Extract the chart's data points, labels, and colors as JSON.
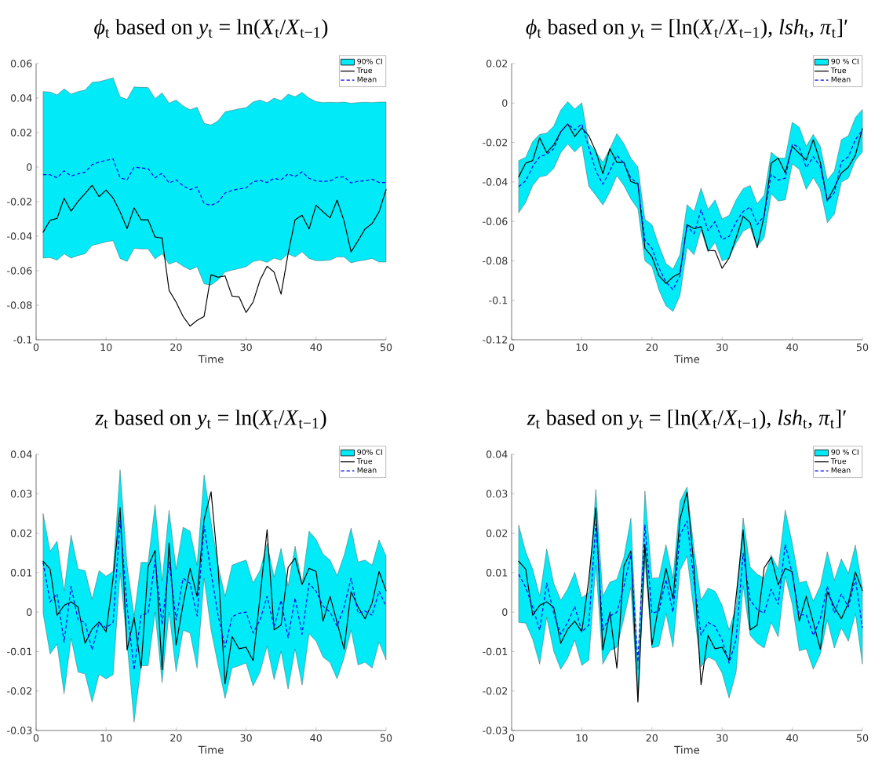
{
  "chart_data": [
    {
      "type": "line",
      "title": "*ϕ*$_{t}$ based on *y*$_{t}$ = ln(*X*$_{t}$/*X*$_{t−1}$)",
      "xlabel": "Time",
      "legend": "top right",
      "x": [
        1,
        2,
        3,
        4,
        5,
        6,
        7,
        8,
        9,
        10,
        11,
        12,
        13,
        14,
        15,
        16,
        17,
        18,
        19,
        20,
        21,
        22,
        23,
        24,
        25,
        26,
        27,
        28,
        29,
        30,
        31,
        32,
        33,
        34,
        35,
        36,
        37,
        38,
        39,
        40,
        41,
        42,
        43,
        44,
        45,
        46,
        47,
        48,
        49,
        50
      ],
      "xlim": [
        0,
        50
      ],
      "xticks": [
        0,
        10,
        20,
        30,
        40,
        50
      ],
      "ylim": [
        -0.1,
        0.06
      ],
      "yticks": [
        -0.1,
        -0.08,
        -0.06,
        -0.04,
        -0.02,
        0,
        0.02,
        0.04,
        0.06
      ],
      "series": [
        {
          "name": "90% CI",
          "type": "area",
          "color": "#00ebf7",
          "values": [
            null,
            null,
            null,
            null,
            null,
            null,
            null,
            null,
            null,
            null,
            null,
            null,
            null,
            null,
            null,
            null,
            null,
            null,
            null,
            null,
            null,
            null,
            null,
            null,
            null,
            null,
            null,
            null,
            null,
            null,
            null,
            null,
            null,
            null,
            null,
            null,
            null,
            null,
            null,
            null,
            null,
            null,
            null,
            null,
            null,
            null,
            null,
            null,
            null,
            null
          ],
          "upper": [
            0.0438,
            0.0435,
            0.0418,
            0.0453,
            0.0423,
            0.0438,
            0.0447,
            0.0491,
            0.0495,
            0.0506,
            0.0517,
            0.0408,
            0.0392,
            0.0465,
            0.0462,
            0.0461,
            0.0397,
            0.043,
            0.037,
            0.0389,
            0.0355,
            0.0332,
            0.0347,
            0.0253,
            0.0244,
            0.0268,
            0.032,
            0.0329,
            0.0338,
            0.0344,
            0.0377,
            0.0389,
            0.0373,
            0.04,
            0.0385,
            0.0423,
            0.0408,
            0.0433,
            0.04,
            0.038,
            0.0374,
            0.0376,
            0.0374,
            0.0377,
            0.037,
            0.0374,
            0.0376,
            0.0374,
            0.0377,
            0.0377
          ],
          "lower": [
            -0.0527,
            -0.0524,
            -0.0539,
            -0.0502,
            -0.0527,
            -0.0512,
            -0.0502,
            -0.0453,
            -0.0444,
            -0.0433,
            -0.0426,
            -0.0529,
            -0.0547,
            -0.0471,
            -0.0474,
            -0.0474,
            -0.0532,
            -0.0502,
            -0.0562,
            -0.0547,
            -0.0574,
            -0.0595,
            -0.0577,
            -0.0676,
            -0.0683,
            -0.0653,
            -0.0608,
            -0.0597,
            -0.0588,
            -0.0577,
            -0.0547,
            -0.0539,
            -0.0552,
            -0.0527,
            -0.0539,
            -0.0502,
            -0.0521,
            -0.0491,
            -0.0529,
            -0.0542,
            -0.0542,
            -0.0539,
            -0.052,
            -0.0521,
            -0.0555,
            -0.0544,
            -0.0539,
            -0.0529,
            -0.055,
            -0.055
          ]
        },
        {
          "name": "True",
          "color": "#000000",
          "line_style": "dotted",
          "values": [
            -0.0377,
            -0.0308,
            -0.0297,
            -0.018,
            -0.0255,
            -0.0198,
            -0.0153,
            -0.0105,
            -0.0171,
            -0.0133,
            -0.0179,
            -0.0259,
            -0.0356,
            -0.0236,
            -0.0305,
            -0.0305,
            -0.0405,
            -0.0411,
            -0.0714,
            -0.0782,
            -0.0865,
            -0.0921,
            -0.0888,
            -0.0865,
            -0.0623,
            -0.0638,
            -0.063,
            -0.0747,
            -0.0752,
            -0.0842,
            -0.0782,
            -0.0653,
            -0.0574,
            -0.0608,
            -0.0736,
            -0.0502,
            -0.0305,
            -0.0279,
            -0.0358,
            -0.0221,
            -0.0259,
            -0.0294,
            -0.0191,
            -0.0312,
            -0.0491,
            -0.0426,
            -0.0358,
            -0.0327,
            -0.0259,
            -0.013
          ]
        },
        {
          "name": "Mean",
          "color": "#0000ff",
          "line_style": "dashed",
          "values": [
            -0.0044,
            -0.0044,
            -0.0062,
            -0.0021,
            -0.0052,
            -0.0039,
            -0.0029,
            0.0014,
            0.0029,
            0.0039,
            0.0047,
            -0.0062,
            -0.0074,
            0.0,
            -0.0005,
            -0.0009,
            -0.0062,
            -0.0035,
            -0.0092,
            -0.0074,
            -0.0108,
            -0.013,
            -0.0115,
            -0.0211,
            -0.0221,
            -0.0203,
            -0.015,
            -0.0135,
            -0.0126,
            -0.012,
            -0.0085,
            -0.0077,
            -0.0089,
            -0.0065,
            -0.0074,
            -0.0039,
            -0.0055,
            -0.0027,
            -0.0065,
            -0.008,
            -0.0083,
            -0.008,
            -0.0059,
            -0.0056,
            -0.0092,
            -0.0082,
            -0.008,
            -0.007,
            -0.0089,
            -0.0089
          ]
        }
      ]
    },
    {
      "type": "line",
      "title": "*ϕ*$_{t}$ based on *y*$_{t}$ = [ln(*X*$_{t}$/*X*$_{t−1}$), *lsh*$_{t}$, *π*$_{t}$]′",
      "xlabel": "Time",
      "legend": "top right",
      "x": [
        1,
        2,
        3,
        4,
        5,
        6,
        7,
        8,
        9,
        10,
        11,
        12,
        13,
        14,
        15,
        16,
        17,
        18,
        19,
        20,
        21,
        22,
        23,
        24,
        25,
        26,
        27,
        28,
        29,
        30,
        31,
        32,
        33,
        34,
        35,
        36,
        37,
        38,
        39,
        40,
        41,
        42,
        43,
        44,
        45,
        46,
        47,
        48,
        49,
        50
      ],
      "xlim": [
        0,
        50
      ],
      "xticks": [
        0,
        10,
        20,
        30,
        40,
        50
      ],
      "ylim": [
        -0.12,
        0.02
      ],
      "yticks": [
        -0.12,
        -0.1,
        -0.08,
        -0.06,
        -0.04,
        -0.02,
        0,
        0.02
      ],
      "series": [
        {
          "name": "90 % CI",
          "type": "area",
          "color": "#00ebf7",
          "values": [
            null,
            null,
            null,
            null,
            null,
            null,
            null,
            null,
            null,
            null,
            null,
            null,
            null,
            null,
            null,
            null,
            null,
            null,
            null,
            null,
            null,
            null,
            null,
            null,
            null,
            null,
            null,
            null,
            null,
            null,
            null,
            null,
            null,
            null,
            null,
            null,
            null,
            null,
            null,
            null,
            null,
            null,
            null,
            null,
            null,
            null,
            null,
            null,
            null,
            null
          ],
          "upper": [
            -0.0292,
            -0.0275,
            -0.0195,
            -0.0159,
            -0.0153,
            -0.0117,
            -0.0036,
            0.0007,
            -0.0031,
            0.0001,
            -0.0206,
            -0.0245,
            -0.0301,
            -0.0232,
            -0.0155,
            -0.0206,
            -0.0279,
            -0.0325,
            -0.059,
            -0.0617,
            -0.0723,
            -0.0813,
            -0.0842,
            -0.0767,
            -0.0515,
            -0.055,
            -0.0431,
            -0.054,
            -0.0491,
            -0.0588,
            -0.057,
            -0.0491,
            -0.0434,
            -0.0418,
            -0.0511,
            -0.0467,
            -0.0249,
            -0.0279,
            -0.0279,
            -0.0097,
            -0.0123,
            -0.0219,
            -0.0159,
            -0.0219,
            -0.0391,
            -0.0345,
            -0.0186,
            -0.0166,
            -0.0073,
            -0.0033
          ],
          "lower": [
            -0.0557,
            -0.0504,
            -0.0418,
            -0.0375,
            -0.0367,
            -0.0332,
            -0.0252,
            -0.0208,
            -0.0248,
            -0.0212,
            -0.0422,
            -0.0468,
            -0.0517,
            -0.0451,
            -0.0369,
            -0.0418,
            -0.0487,
            -0.0537,
            -0.08,
            -0.0829,
            -0.0948,
            -0.1028,
            -0.1057,
            -0.0975,
            -0.0732,
            -0.0769,
            -0.0643,
            -0.0756,
            -0.0707,
            -0.08,
            -0.0786,
            -0.071,
            -0.065,
            -0.063,
            -0.0729,
            -0.0683,
            -0.046,
            -0.0497,
            -0.0491,
            -0.0309,
            -0.0336,
            -0.0438,
            -0.0378,
            -0.0438,
            -0.0606,
            -0.0564,
            -0.0402,
            -0.0381,
            -0.0292,
            -0.0248
          ]
        },
        {
          "name": "True",
          "color": "#000000",
          "line_style": "dotted",
          "values": [
            -0.0375,
            -0.0305,
            -0.0292,
            -0.0176,
            -0.0252,
            -0.0212,
            -0.0146,
            -0.0106,
            -0.017,
            -0.0126,
            -0.0166,
            -0.0245,
            -0.0358,
            -0.0232,
            -0.0301,
            -0.0301,
            -0.0398,
            -0.0411,
            -0.0736,
            -0.0779,
            -0.0875,
            -0.0915,
            -0.0882,
            -0.0862,
            -0.0617,
            -0.0637,
            -0.0627,
            -0.0747,
            -0.0749,
            -0.0838,
            -0.0786,
            -0.0683,
            -0.0574,
            -0.0606,
            -0.0733,
            -0.057,
            -0.0305,
            -0.0279,
            -0.0354,
            -0.0219,
            -0.0256,
            -0.0289,
            -0.0186,
            -0.0301,
            -0.0495,
            -0.0428,
            -0.0355,
            -0.0325,
            -0.0265,
            -0.013
          ]
        },
        {
          "name": "Mean",
          "color": "#0000ff",
          "line_style": "dashed",
          "values": [
            -0.0424,
            -0.0395,
            -0.0322,
            -0.0272,
            -0.0261,
            -0.0232,
            -0.0146,
            -0.0106,
            -0.0137,
            -0.0106,
            -0.0225,
            -0.0345,
            -0.0411,
            -0.0345,
            -0.0265,
            -0.0305,
            -0.0381,
            -0.0407,
            -0.0696,
            -0.0736,
            -0.0836,
            -0.0908,
            -0.0946,
            -0.0875,
            -0.0623,
            -0.0663,
            -0.0541,
            -0.0646,
            -0.0601,
            -0.0692,
            -0.0676,
            -0.0603,
            -0.055,
            -0.0527,
            -0.0617,
            -0.057,
            -0.0362,
            -0.0391,
            -0.0381,
            -0.0208,
            -0.0225,
            -0.0328,
            -0.0272,
            -0.0322,
            -0.0497,
            -0.0455,
            -0.0298,
            -0.0272,
            -0.0186,
            -0.0137
          ]
        }
      ]
    },
    {
      "type": "line",
      "title": "*z*$_{t}$ based on *y*$_{t}$ = ln(*X*$_{t}$/*X*$_{t−1}$)",
      "xlabel": "Time",
      "legend": "top right",
      "x": [
        1,
        2,
        3,
        4,
        5,
        6,
        7,
        8,
        9,
        10,
        11,
        12,
        13,
        14,
        15,
        16,
        17,
        18,
        19,
        20,
        21,
        22,
        23,
        24,
        25,
        26,
        27,
        28,
        29,
        30,
        31,
        32,
        33,
        34,
        35,
        36,
        37,
        38,
        39,
        40,
        41,
        42,
        43,
        44,
        45,
        46,
        47,
        48,
        49,
        50
      ],
      "xlim": [
        0,
        50
      ],
      "xticks": [
        0,
        10,
        20,
        30,
        40,
        50
      ],
      "ylim": [
        -0.03,
        0.04
      ],
      "yticks": [
        -0.03,
        -0.02,
        -0.01,
        0,
        0.01,
        0.02,
        0.03,
        0.04
      ],
      "series": [
        {
          "name": "90% CI",
          "type": "area",
          "color": "#00ebf7",
          "values": [
            null,
            null,
            null,
            null,
            null,
            null,
            null,
            null,
            null,
            null,
            null,
            null,
            null,
            null,
            null,
            null,
            null,
            null,
            null,
            null,
            null,
            null,
            null,
            null,
            null,
            null,
            null,
            null,
            null,
            null,
            null,
            null,
            null,
            null,
            null,
            null,
            null,
            null,
            null,
            null,
            null,
            null,
            null,
            null,
            null,
            null,
            null,
            null,
            null,
            null
          ],
          "upper": [
            0.025,
            0.0154,
            0.018,
            0.0053,
            0.0195,
            0.0109,
            0.0105,
            0.0033,
            0.0105,
            0.0091,
            0.0103,
            0.0361,
            0.0119,
            -0.001,
            0.0126,
            0.0126,
            0.0272,
            0.0079,
            0.0258,
            0.0109,
            0.0215,
            0.0205,
            0.0119,
            0.0348,
            0.0228,
            0.0119,
            0.004,
            0.0119,
            0.0126,
            0.0132,
            0.0074,
            0.0106,
            0.0174,
            0.0089,
            0.0162,
            0.0066,
            0.0167,
            0.0073,
            0.0205,
            0.0184,
            0.0147,
            0.0132,
            0.0093,
            0.0144,
            0.0213,
            0.0127,
            0.0132,
            0.0119,
            0.0183,
            0.0142
          ],
          "lower": [
            -0.0003,
            -0.0106,
            -0.0081,
            -0.0207,
            -0.0066,
            -0.0152,
            -0.0157,
            -0.0228,
            -0.0158,
            -0.0169,
            -0.0159,
            0.0099,
            -0.0079,
            -0.0279,
            -0.0136,
            -0.0136,
            0.0,
            -0.0179,
            0.0,
            -0.0151,
            -0.0046,
            -0.0053,
            -0.0142,
            0.0086,
            -0.0046,
            -0.0134,
            -0.0219,
            -0.0142,
            -0.0136,
            -0.0129,
            -0.0187,
            -0.0152,
            -0.0086,
            -0.0171,
            -0.0099,
            -0.0195,
            -0.0093,
            -0.0185,
            -0.0055,
            -0.0074,
            -0.0114,
            -0.0128,
            -0.0169,
            -0.0116,
            -0.0046,
            -0.0134,
            -0.0127,
            -0.0142,
            -0.0076,
            -0.0121
          ]
        },
        {
          "name": "True",
          "color": "#000000",
          "line_style": "dotted",
          "values": [
            0.0129,
            0.0109,
            -0.0008,
            0.0017,
            0.0026,
            0.0013,
            -0.0079,
            -0.0043,
            -0.0025,
            -0.005,
            0.0086,
            0.0265,
            -0.0096,
            -0.0013,
            -0.0142,
            0.0116,
            0.0156,
            -0.0146,
            0.0175,
            -0.0083,
            0.002,
            0.0111,
            0.004,
            0.0235,
            0.0305,
            0.0113,
            -0.0182,
            -0.0062,
            -0.0093,
            -0.0089,
            -0.0123,
            0.004,
            0.0209,
            -0.0045,
            -0.0033,
            0.0113,
            0.0137,
            0.007,
            0.0111,
            0.0103,
            -0.0023,
            0.004,
            -0.0026,
            -0.0094,
            0.0052,
            0.0013,
            -0.0017,
            0.0023,
            0.0103,
            0.0054
          ]
        },
        {
          "name": "Mean",
          "color": "#0000ff",
          "line_style": "dashed",
          "values": [
            0.0126,
            0.0026,
            0.0046,
            -0.0076,
            0.0065,
            -0.002,
            -0.0026,
            -0.0096,
            -0.0026,
            -0.004,
            -0.0026,
            0.0232,
            0.0013,
            -0.0147,
            -0.0007,
            -0.0003,
            0.0132,
            -0.0032,
            0.0127,
            -0.002,
            0.0086,
            0.0073,
            -0.001,
            0.0219,
            0.0099,
            -0.0008,
            -0.0089,
            -0.0012,
            -0.0003,
            0.0,
            -0.0053,
            -0.002,
            0.004,
            -0.0038,
            0.003,
            -0.0065,
            0.0036,
            -0.0056,
            0.0073,
            0.0053,
            0.0015,
            0.0,
            -0.0036,
            0.0013,
            0.0086,
            -0.0003,
            0.0003,
            -0.0008,
            0.0053,
            0.0015
          ]
        }
      ]
    },
    {
      "type": "line",
      "title": "*z*$_{t}$ based on *y*$_{t}$ = [ln(*X*$_{t}$/*X*$_{t−1}$), *lsh*$_{t}$, *π*$_{t}$]′",
      "xlabel": "Time",
      "legend": "top right",
      "x": [
        1,
        2,
        3,
        4,
        5,
        6,
        7,
        8,
        9,
        10,
        11,
        12,
        13,
        14,
        15,
        16,
        17,
        18,
        19,
        20,
        21,
        22,
        23,
        24,
        25,
        26,
        27,
        28,
        29,
        30,
        31,
        32,
        33,
        34,
        35,
        36,
        37,
        38,
        39,
        40,
        41,
        42,
        43,
        44,
        45,
        46,
        47,
        48,
        49,
        50
      ],
      "xlim": [
        0,
        50
      ],
      "xticks": [
        0,
        10,
        20,
        30,
        40,
        50
      ],
      "ylim": [
        -0.03,
        0.04
      ],
      "yticks": [
        -0.03,
        -0.02,
        -0.01,
        0,
        0.01,
        0.02,
        0.03,
        0.04
      ],
      "series": [
        {
          "name": "90 % CI",
          "type": "area",
          "color": "#00ebf7",
          "values": [
            null,
            null,
            null,
            null,
            null,
            null,
            null,
            null,
            null,
            null,
            null,
            null,
            null,
            null,
            null,
            null,
            null,
            null,
            null,
            null,
            null,
            null,
            null,
            null,
            null,
            null,
            null,
            null,
            null,
            null,
            null,
            null,
            null,
            null,
            null,
            null,
            null,
            null,
            null,
            null,
            null,
            null,
            null,
            null,
            null,
            null,
            null,
            null,
            null,
            null
          ],
          "upper": [
            0.0221,
            0.0153,
            0.0109,
            0.004,
            0.016,
            0.0073,
            0.003,
            0.0059,
            0.0101,
            0.0036,
            0.005,
            0.0311,
            0.004,
            0.0076,
            0.0083,
            0.0139,
            0.0238,
            -0.0145,
            0.0307,
            0.0086,
            0.0087,
            0.0171,
            0.0086,
            0.0281,
            0.0317,
            0.0159,
            0.003,
            0.0061,
            0.0053,
            0.0017,
            -0.0045,
            0.0013,
            0.0239,
            0.0114,
            0.0096,
            0.0086,
            0.0145,
            0.0109,
            0.0259,
            0.0175,
            0.0074,
            0.0079,
            0.0028,
            0.0067,
            0.0153,
            0.0081,
            0.0135,
            0.0098,
            0.017,
            0.0063
          ],
          "lower": [
            -0.0026,
            -0.0028,
            -0.0069,
            -0.0132,
            -0.0013,
            -0.0099,
            -0.0145,
            -0.0116,
            -0.0071,
            -0.0135,
            -0.0122,
            0.0119,
            -0.0132,
            -0.0098,
            -0.0089,
            -0.0016,
            0.0063,
            -0.0225,
            0.0132,
            -0.0091,
            -0.0086,
            -0.0003,
            -0.0089,
            0.0106,
            0.0142,
            0.0,
            -0.0139,
            -0.0114,
            -0.0122,
            -0.0155,
            -0.0218,
            -0.0152,
            0.0067,
            -0.0059,
            -0.0079,
            -0.0091,
            -0.0026,
            -0.0063,
            0.0091,
            0.002,
            -0.0098,
            -0.0093,
            -0.0145,
            -0.0106,
            -0.002,
            -0.0091,
            -0.004,
            -0.0074,
            -0.0003,
            -0.0132
          ]
        },
        {
          "name": "True",
          "color": "#000000",
          "line_style": "dotted",
          "values": [
            0.0129,
            0.0109,
            -0.0008,
            0.0017,
            0.0026,
            0.0012,
            -0.0079,
            -0.0043,
            -0.0023,
            -0.005,
            0.0083,
            0.0264,
            -0.0096,
            0.0,
            -0.0142,
            0.0116,
            0.0155,
            -0.0228,
            0.0172,
            -0.0083,
            0.002,
            0.0111,
            0.0034,
            0.0235,
            0.0304,
            0.0112,
            -0.0184,
            -0.0059,
            -0.0093,
            -0.0089,
            -0.0122,
            0.004,
            0.0208,
            -0.0045,
            -0.0033,
            0.0112,
            0.0139,
            0.0069,
            0.0111,
            0.0102,
            -0.0023,
            0.004,
            -0.0026,
            -0.0094,
            0.0052,
            0.0013,
            -0.0017,
            0.0023,
            0.0102,
            0.0054
          ]
        },
        {
          "name": "Mean",
          "color": "#0000ff",
          "line_style": "dashed",
          "values": [
            0.0096,
            0.0063,
            0.0013,
            -0.0046,
            0.0073,
            -0.0003,
            -0.0056,
            -0.0026,
            0.0015,
            -0.005,
            -0.0033,
            0.0223,
            -0.0046,
            -0.001,
            0.0,
            0.0066,
            0.0145,
            -0.0126,
            0.0221,
            -0.0003,
            0.0003,
            0.0083,
            0.0,
            0.0195,
            0.0231,
            0.0079,
            -0.0058,
            -0.0026,
            -0.0036,
            -0.0071,
            -0.0129,
            -0.0069,
            0.0149,
            0.003,
            0.0007,
            -0.0003,
            0.0058,
            0.002,
            0.0172,
            0.0096,
            -0.0007,
            -0.0007,
            -0.0059,
            -0.0017,
            0.0066,
            -0.0003,
            0.0046,
            0.0013,
            0.0086,
            -0.004
          ]
        }
      ]
    }
  ]
}
